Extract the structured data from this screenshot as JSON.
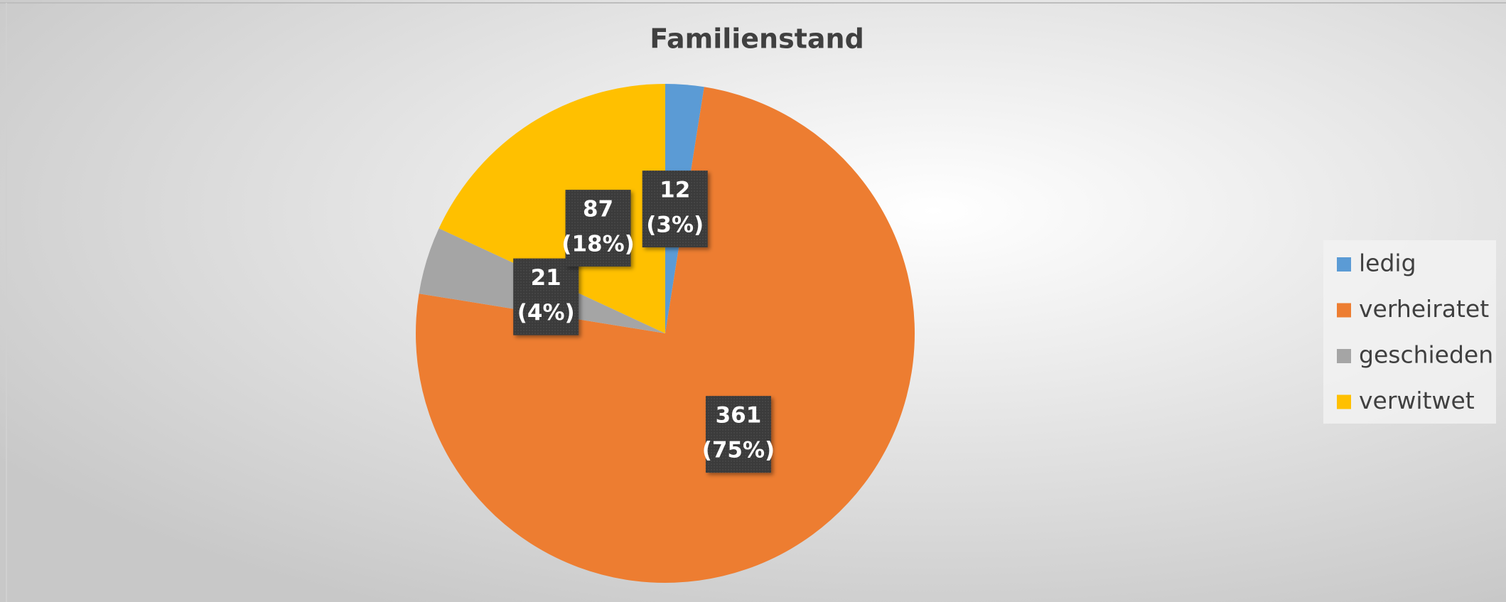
{
  "chart_data": {
    "type": "pie",
    "title": "Familienstand",
    "categories": [
      "ledig",
      "verheiratet",
      "geschieden",
      "verwitwet"
    ],
    "values": [
      12,
      361,
      21,
      87
    ],
    "percent_labels": [
      "(3%)",
      "(75%)",
      "(4%)",
      "(18%)"
    ],
    "colors": [
      "#5b9bd5",
      "#ed7d31",
      "#a5a5a5",
      "#ffc000"
    ],
    "legend": "right"
  }
}
